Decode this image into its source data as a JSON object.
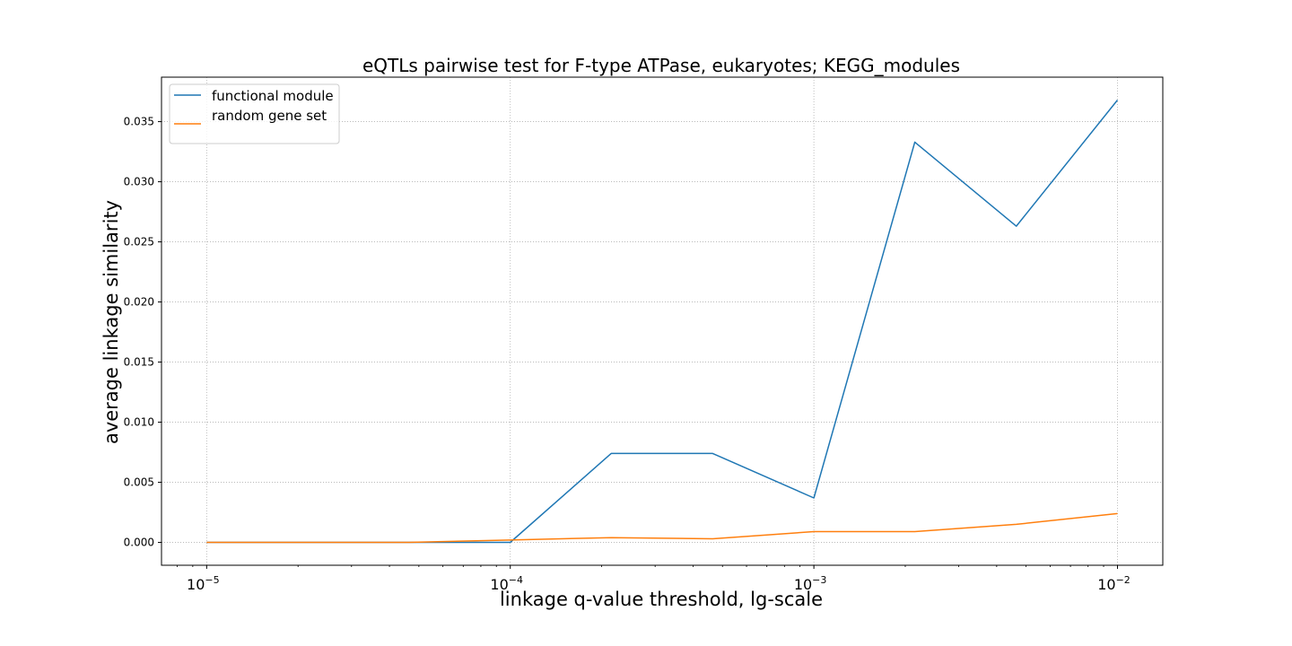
{
  "chart_data": {
    "type": "line",
    "title": "eQTLs pairwise test for F-type ATPase, eukaryotes; KEGG_modules",
    "xlabel": "linkage q-value threshold, lg-scale",
    "ylabel": "average linkage similarity",
    "xscale": "log10",
    "xlim": [
      7.1e-06,
      0.0141
    ],
    "ylim": [
      -0.0019,
      0.0387
    ],
    "grid": true,
    "legend_position": "top-left",
    "x_ticks": [
      {
        "value": 1e-05,
        "base": "10",
        "exp": "−5"
      },
      {
        "value": 0.0001,
        "base": "10",
        "exp": "−4"
      },
      {
        "value": 0.001,
        "base": "10",
        "exp": "−3"
      },
      {
        "value": 0.01,
        "base": "10",
        "exp": "−2"
      }
    ],
    "y_ticks": [
      "0.000",
      "0.005",
      "0.010",
      "0.015",
      "0.020",
      "0.025",
      "0.030",
      "0.035"
    ],
    "x": [
      1e-05,
      2.15e-05,
      4.64e-05,
      0.0001,
      0.000215,
      0.000464,
      0.001,
      0.00215,
      0.00464,
      0.01
    ],
    "series": [
      {
        "name": "functional module",
        "color": "#1f77b4",
        "values": [
          0.0,
          0.0,
          0.0,
          0.0,
          0.0074,
          0.0074,
          0.0037,
          0.0333,
          0.0263,
          0.0368
        ]
      },
      {
        "name": "random gene set",
        "color": "#ff7f0e",
        "values": [
          0.0,
          0.0,
          0.0,
          0.0002,
          0.0004,
          0.0003,
          0.0009,
          0.0009,
          0.0015,
          0.0024
        ]
      }
    ]
  }
}
